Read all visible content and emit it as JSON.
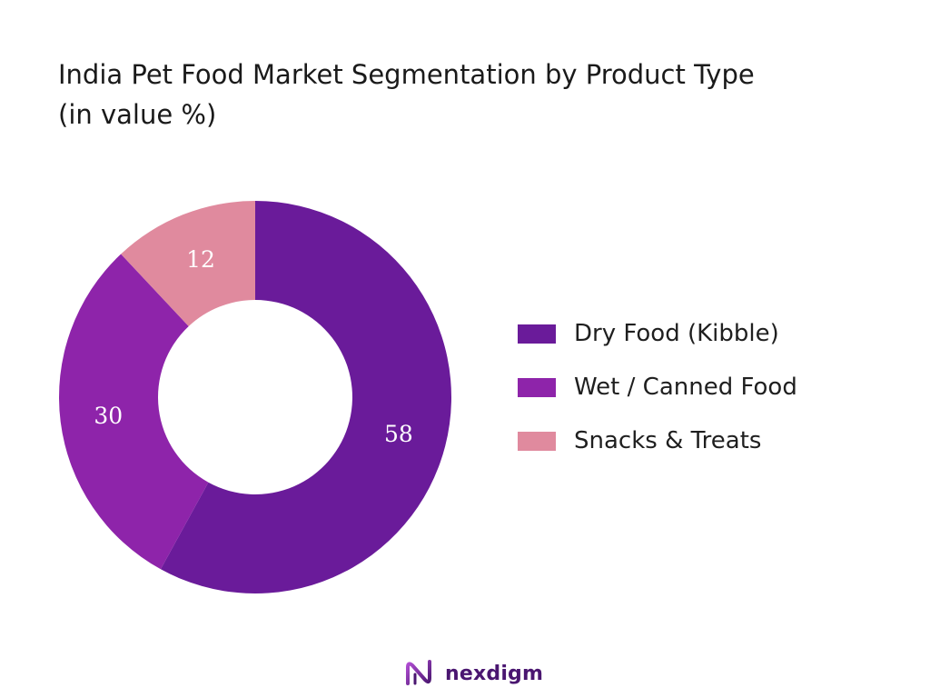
{
  "title": {
    "line1": "India Pet Food Market Segmentation by Product Type",
    "line2": "(in value %)"
  },
  "chart_data": {
    "type": "pie",
    "variant": "donut",
    "categories": [
      "Dry Food (Kibble)",
      "Wet / Canned Food",
      "Snacks & Treats"
    ],
    "values": [
      58,
      30,
      12
    ],
    "data_labels": [
      "58",
      "30",
      "12"
    ],
    "colors": [
      "#6a1b9a",
      "#8e24aa",
      "#e08a9e"
    ],
    "legend_position": "right",
    "start_angle_deg": 0,
    "direction": "clockwise"
  },
  "legend": {
    "items": [
      {
        "label": "Dry Food (Kibble)",
        "color": "#6a1b9a"
      },
      {
        "label": "Wet / Canned Food",
        "color": "#8e24aa"
      },
      {
        "label": "Snacks & Treats",
        "color": "#e08a9e"
      }
    ]
  },
  "brand": {
    "name": "nexdigm",
    "icon": "nexdigm-logo-icon",
    "color": "#4a1670"
  }
}
